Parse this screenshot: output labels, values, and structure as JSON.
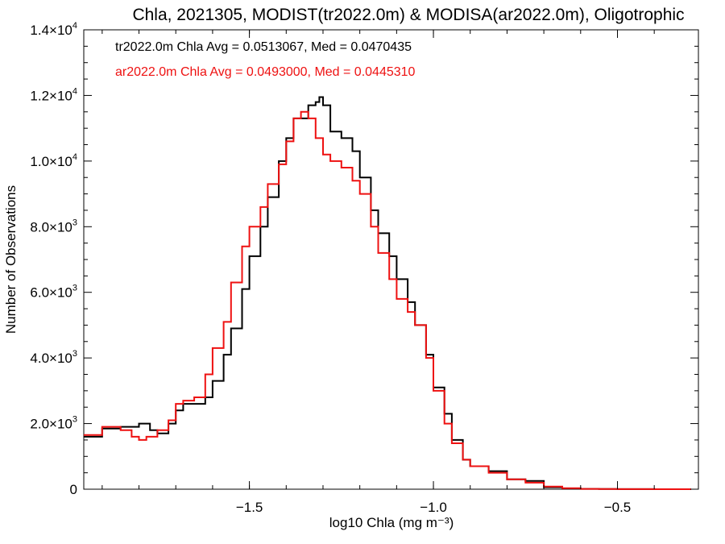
{
  "chart_data": {
    "type": "line",
    "title": "Chla, 2021305, MODIST(tr2022.0m) & MODISA(ar2022.0m), Oligotrophic",
    "xlabel": "log10 Chla (mg m⁻³)",
    "ylabel": "Number of Observations",
    "xlim": [
      -1.95,
      -0.28
    ],
    "ylim": [
      0,
      14000
    ],
    "x_ticks": [
      -1.5,
      -1.0,
      -0.5
    ],
    "x_tick_labels": [
      "−1.5",
      "−1.0",
      "−0.5"
    ],
    "y_ticks": [
      0,
      2000,
      4000,
      6000,
      8000,
      10000,
      12000,
      14000
    ],
    "y_tick_labels": [
      {
        "mant": "0",
        "exp": ""
      },
      {
        "mant": "2.0×10",
        "exp": "3"
      },
      {
        "mant": "4.0×10",
        "exp": "3"
      },
      {
        "mant": "6.0×10",
        "exp": "3"
      },
      {
        "mant": "8.0×10",
        "exp": "3"
      },
      {
        "mant": "1.0×10",
        "exp": "4"
      },
      {
        "mant": "1.2×10",
        "exp": "4"
      },
      {
        "mant": "1.4×10",
        "exp": "4"
      }
    ],
    "grid": false,
    "step": true,
    "annotations": [
      {
        "text": "tr2022.0m Chla Avg = 0.0513067, Med = 0.0470435",
        "color": "#000000"
      },
      {
        "text": "ar2022.0m Chla Avg = 0.0493000, Med = 0.0445310",
        "color": "#ee1111"
      }
    ],
    "series": [
      {
        "color": "#000000",
        "x": [
          -1.95,
          -1.9,
          -1.85,
          -1.8,
          -1.77,
          -1.75,
          -1.72,
          -1.7,
          -1.68,
          -1.65,
          -1.62,
          -1.6,
          -1.57,
          -1.55,
          -1.52,
          -1.5,
          -1.47,
          -1.45,
          -1.42,
          -1.4,
          -1.38,
          -1.36,
          -1.34,
          -1.32,
          -1.31,
          -1.3,
          -1.28,
          -1.25,
          -1.22,
          -1.2,
          -1.17,
          -1.15,
          -1.12,
          -1.1,
          -1.07,
          -1.05,
          -1.02,
          -1.0,
          -0.97,
          -0.95,
          -0.92,
          -0.9,
          -0.85,
          -0.8,
          -0.75,
          -0.7,
          -0.65,
          -0.6,
          -0.55,
          -0.5,
          -0.45,
          -0.4,
          -0.35,
          -0.3
        ],
        "y": [
          1600,
          1850,
          1900,
          2000,
          1800,
          1700,
          2000,
          2400,
          2600,
          2600,
          2800,
          3300,
          4100,
          4900,
          6100,
          7100,
          8000,
          8900,
          10000,
          10700,
          11300,
          11300,
          11700,
          11800,
          11950,
          11700,
          10900,
          10700,
          10300,
          9500,
          8500,
          7800,
          7100,
          6400,
          5700,
          5000,
          4100,
          3100,
          2300,
          1500,
          900,
          700,
          550,
          300,
          250,
          60,
          20,
          10,
          5,
          3,
          2,
          1,
          0,
          0
        ]
      },
      {
        "color": "#ee1111",
        "x": [
          -1.95,
          -1.9,
          -1.85,
          -1.82,
          -1.8,
          -1.78,
          -1.75,
          -1.72,
          -1.7,
          -1.68,
          -1.65,
          -1.62,
          -1.6,
          -1.57,
          -1.55,
          -1.52,
          -1.5,
          -1.47,
          -1.45,
          -1.42,
          -1.4,
          -1.38,
          -1.36,
          -1.34,
          -1.32,
          -1.3,
          -1.28,
          -1.25,
          -1.22,
          -1.2,
          -1.17,
          -1.15,
          -1.12,
          -1.1,
          -1.07,
          -1.05,
          -1.02,
          -1.0,
          -0.97,
          -0.95,
          -0.92,
          -0.9,
          -0.85,
          -0.8,
          -0.75,
          -0.7,
          -0.65,
          -0.6,
          -0.55,
          -0.5,
          -0.45,
          -0.4,
          -0.35,
          -0.3
        ],
        "y": [
          1650,
          1900,
          1800,
          1600,
          1500,
          1600,
          1800,
          2100,
          2600,
          2700,
          2800,
          3500,
          4300,
          5100,
          6300,
          7400,
          8000,
          8600,
          9300,
          9900,
          10600,
          11300,
          11500,
          11300,
          10700,
          10200,
          10000,
          9800,
          9400,
          9000,
          8000,
          7200,
          6400,
          5800,
          5400,
          5000,
          4000,
          3000,
          2000,
          1400,
          900,
          700,
          500,
          300,
          200,
          80,
          30,
          10,
          5,
          3,
          2,
          1,
          0,
          0
        ]
      }
    ]
  }
}
